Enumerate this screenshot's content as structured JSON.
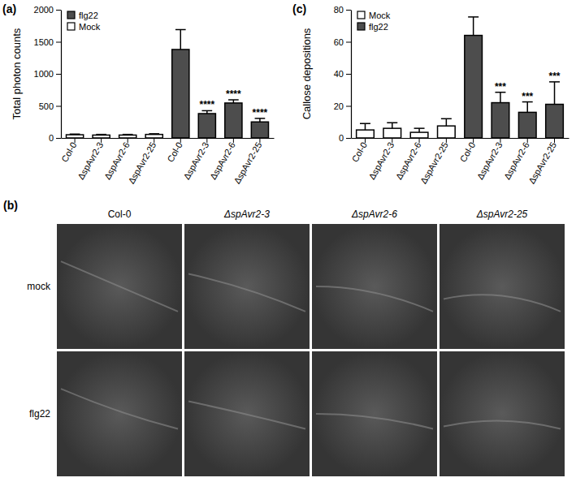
{
  "chart_data": [
    {
      "type": "bar",
      "title": "(a)",
      "y_label": "Total photon counts",
      "categories": [
        "Col-0",
        "ΔspAvr2-3",
        "ΔspAvr2-6",
        "ΔspAvr2-25",
        "Col-0",
        "ΔspAvr2-3",
        "ΔspAvr2-6",
        "ΔspAvr2-25"
      ],
      "series": [
        {
          "name": "flg22",
          "color": "#4d4d4d",
          "values": [
            null,
            null,
            null,
            null,
            1380,
            380,
            545,
            250
          ],
          "errors": [
            null,
            null,
            null,
            null,
            310,
            45,
            50,
            55
          ],
          "significance": [
            null,
            null,
            null,
            null,
            null,
            "****",
            "****",
            "****"
          ]
        },
        {
          "name": "Mock",
          "color": "#ffffff",
          "values": [
            50,
            45,
            45,
            55,
            null,
            null,
            null,
            null
          ],
          "errors": [
            10,
            10,
            10,
            10,
            null,
            null,
            null,
            null
          ],
          "significance": [
            null,
            null,
            null,
            null,
            null,
            null,
            null,
            null
          ]
        }
      ],
      "ylim": [
        0,
        2000
      ],
      "yticks": [
        0,
        500,
        1000,
        1500,
        2000
      ],
      "legend": "upper left"
    },
    {
      "type": "bar",
      "title": "(c)",
      "y_label": "Callose depositions",
      "categories": [
        "Col-0",
        "ΔspAvr2-3",
        "ΔspAvr2-6",
        "ΔspAvr2-25",
        "Col-0",
        "ΔspAvr2-3",
        "ΔspAvr2-6",
        "ΔspAvr2-25"
      ],
      "series": [
        {
          "name": "Mock",
          "color": "#ffffff",
          "values": [
            5,
            6,
            3.5,
            7.5,
            null,
            null,
            null,
            null
          ],
          "errors": [
            4,
            3.5,
            2.5,
            4.5,
            null,
            null,
            null,
            null
          ],
          "significance": [
            null,
            null,
            null,
            null,
            null,
            null,
            null,
            null
          ]
        },
        {
          "name": "flg22",
          "color": "#4d4d4d",
          "values": [
            null,
            null,
            null,
            null,
            64,
            22,
            16,
            21
          ],
          "errors": [
            null,
            null,
            null,
            null,
            11.5,
            6.5,
            6.5,
            14
          ],
          "significance": [
            null,
            null,
            null,
            null,
            null,
            "***",
            "***",
            "***"
          ]
        }
      ],
      "ylim": [
        0,
        80
      ],
      "yticks": [
        0,
        20,
        40,
        60,
        80
      ],
      "legend": "upper left"
    }
  ],
  "image_panel": {
    "label": "(b)",
    "columns": [
      "Col-0",
      "ΔspAvr2-3",
      "ΔspAvr2-6",
      "ΔspAvr2-25"
    ],
    "rows": [
      "mock",
      "flg22"
    ]
  }
}
